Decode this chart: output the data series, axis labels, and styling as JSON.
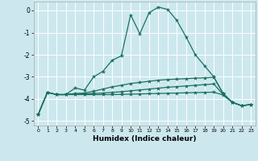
{
  "xlabel": "Humidex (Indice chaleur)",
  "background_color": "#cce8ee",
  "grid_color": "#ffffff",
  "line_color": "#1a7060",
  "xlim": [
    -0.5,
    23.5
  ],
  "ylim": [
    -5.2,
    0.4
  ],
  "yticks": [
    0,
    -1,
    -2,
    -3,
    -4,
    -5
  ],
  "xticks": [
    0,
    1,
    2,
    3,
    4,
    5,
    6,
    7,
    8,
    9,
    10,
    11,
    12,
    13,
    14,
    15,
    16,
    17,
    18,
    19,
    20,
    21,
    22,
    23
  ],
  "series": [
    {
      "points": [
        [
          0,
          -4.7
        ],
        [
          1,
          -3.7
        ],
        [
          2,
          -3.8
        ],
        [
          3,
          -3.8
        ],
        [
          4,
          -3.5
        ],
        [
          5,
          -3.6
        ],
        [
          6,
          -3.0
        ],
        [
          7,
          -2.75
        ],
        [
          8,
          -2.25
        ],
        [
          9,
          -2.05
        ],
        [
          10,
          -0.2
        ],
        [
          11,
          -1.05
        ],
        [
          12,
          -0.1
        ],
        [
          13,
          0.15
        ],
        [
          14,
          0.05
        ],
        [
          15,
          -0.45
        ],
        [
          16,
          -1.2
        ],
        [
          17,
          -2.0
        ],
        [
          18,
          -2.5
        ],
        [
          19,
          -3.0
        ],
        [
          20,
          -3.75
        ],
        [
          21,
          -4.15
        ],
        [
          22,
          -4.3
        ],
        [
          23,
          -4.25
        ]
      ]
    },
    {
      "points": [
        [
          0,
          -4.7
        ],
        [
          1,
          -3.7
        ],
        [
          2,
          -3.8
        ],
        [
          3,
          -3.8
        ],
        [
          4,
          -3.75
        ],
        [
          5,
          -3.73
        ],
        [
          6,
          -3.65
        ],
        [
          7,
          -3.55
        ],
        [
          8,
          -3.45
        ],
        [
          9,
          -3.38
        ],
        [
          10,
          -3.3
        ],
        [
          11,
          -3.25
        ],
        [
          12,
          -3.2
        ],
        [
          13,
          -3.15
        ],
        [
          14,
          -3.12
        ],
        [
          15,
          -3.1
        ],
        [
          16,
          -3.08
        ],
        [
          17,
          -3.06
        ],
        [
          18,
          -3.04
        ],
        [
          19,
          -3.02
        ],
        [
          20,
          -3.75
        ],
        [
          21,
          -4.15
        ],
        [
          22,
          -4.3
        ],
        [
          23,
          -4.25
        ]
      ]
    },
    {
      "points": [
        [
          0,
          -4.7
        ],
        [
          1,
          -3.7
        ],
        [
          2,
          -3.8
        ],
        [
          3,
          -3.8
        ],
        [
          4,
          -3.78
        ],
        [
          5,
          -3.77
        ],
        [
          6,
          -3.75
        ],
        [
          7,
          -3.73
        ],
        [
          8,
          -3.7
        ],
        [
          9,
          -3.67
        ],
        [
          10,
          -3.63
        ],
        [
          11,
          -3.59
        ],
        [
          12,
          -3.55
        ],
        [
          13,
          -3.51
        ],
        [
          14,
          -3.47
        ],
        [
          15,
          -3.44
        ],
        [
          16,
          -3.41
        ],
        [
          17,
          -3.38
        ],
        [
          18,
          -3.35
        ],
        [
          19,
          -3.32
        ],
        [
          20,
          -3.8
        ],
        [
          21,
          -4.15
        ],
        [
          22,
          -4.3
        ],
        [
          23,
          -4.25
        ]
      ]
    },
    {
      "points": [
        [
          0,
          -4.7
        ],
        [
          1,
          -3.7
        ],
        [
          2,
          -3.8
        ],
        [
          3,
          -3.8
        ],
        [
          4,
          -3.8
        ],
        [
          5,
          -3.8
        ],
        [
          6,
          -3.8
        ],
        [
          7,
          -3.8
        ],
        [
          8,
          -3.8
        ],
        [
          9,
          -3.79
        ],
        [
          10,
          -3.78
        ],
        [
          11,
          -3.77
        ],
        [
          12,
          -3.76
        ],
        [
          13,
          -3.75
        ],
        [
          14,
          -3.74
        ],
        [
          15,
          -3.73
        ],
        [
          16,
          -3.72
        ],
        [
          17,
          -3.71
        ],
        [
          18,
          -3.7
        ],
        [
          19,
          -3.69
        ],
        [
          20,
          -3.82
        ],
        [
          21,
          -4.15
        ],
        [
          22,
          -4.3
        ],
        [
          23,
          -4.25
        ]
      ]
    }
  ]
}
